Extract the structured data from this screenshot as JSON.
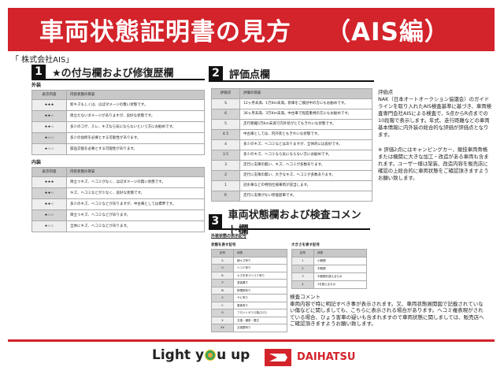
{
  "title": {
    "main": "車両状態証明書の見方",
    "sub": "（AIS編）"
  },
  "company": "「 株式会社AIS」",
  "section1": {
    "num": "1",
    "title": "★の付与欄および修復歴欄",
    "exterior": {
      "label": "外装",
      "headers": [
        "表示内容",
        "内装状態の目安"
      ],
      "rows": [
        [
          "★★★",
          "新キズもしくは、ほぼダメージの無い状態です。"
        ],
        [
          "★★☆",
          "目立たないダメージがありますが、良好な状態です。"
        ],
        [
          "★★☆",
          "多少のコゲ、スレ、キズなら気にならないという方にお勧めです。"
        ],
        [
          "★☆☆",
          "多少の加修を必要とする可能性があります。"
        ],
        [
          "★☆☆",
          "部品交換を必要とする可能性があります。"
        ]
      ]
    },
    "interior": {
      "label": "内装",
      "headers": [
        "表示内容",
        "内装状態の目安"
      ],
      "rows": [
        [
          "★★★",
          "目立つキズ、ヘコミがなく、ほぼダメージの無い状態です。"
        ],
        [
          "★★☆",
          "キズ、ヘコミなどが少なく、良好な状態です。"
        ],
        [
          "★★☆",
          "多少のキズ、ヘコミなどがありますが、中古車としては標準です。"
        ],
        [
          "★☆☆",
          "目立つキズ、ヘコミなどがあります。"
        ],
        [
          "★☆☆",
          "全体にキズ、ヘコミなどがあります。"
        ]
      ]
    }
  },
  "section2": {
    "num": "2",
    "title": "評価点欄",
    "headers": [
      "評価点",
      "評価の目安"
    ],
    "rows": [
      [
        "S",
        "12ヶ月未満、1万Km未満。新車をご検討中の方にもお勧めです。"
      ],
      [
        "6",
        "36ヶ月未満、3万Km未満。中古車で程度重視の方にもお勧めです。"
      ],
      [
        "5",
        "走行距離5万Km未満で内外装がとてもきれいな状態です。"
      ],
      [
        "4.5",
        "中古車としては、内外装ともきれいな状態です。"
      ],
      [
        "4",
        "多少のキズ、ヘコミなどはありますが、全体的には良好です。"
      ],
      [
        "3.5",
        "多少のキズ、ヘコミなら気にならない方にお勧めです。"
      ],
      [
        "3",
        "走行に支障の無い、キズ、ヘコミが多数あります。"
      ],
      [
        "2",
        "走行に支障の無い、大きなキズ、ヘコミが多数あります。"
      ],
      [
        "1",
        "冠水車などの特別仕様車両が該当します。"
      ],
      [
        "R",
        "走行に支障がない修復歴車です。"
      ]
    ],
    "note_title": "評価点",
    "note": "NAK（日本オートオークション協議会）のガイドラインを取り入れたAIS検査基準に基づき、車両検査専門会社AISによる検査で、S点からR点までの10段階で表示します。年式、走行距離などの車両基本情報に内外装の総合的な評価が評価点となります。",
    "note2": "※ 評価2点にはキャンピングカー、競技車両骨格または機関に大きな加工・改造がある車両も含まれます。ユーザー様は架装、改造内容を販売店に確認の上総合的に車両状態をご確認頂きますようお願い致します。"
  },
  "section3": {
    "num": "3",
    "title": "車両状態欄および検査コメント欄",
    "subtitle": "外装状態の表示記号",
    "condition": {
      "label": "状態を表す記号",
      "headers": [
        "記号",
        "状態"
      ],
      "rows": [
        [
          "A",
          "線キズ有り"
        ],
        [
          "U",
          "ヘコミ有り"
        ],
        [
          "B",
          "キズを伴うヘコミ有り"
        ],
        [
          "P",
          "塗装要す"
        ],
        [
          "W",
          "修理跡有り"
        ],
        [
          "S",
          "サビ有り"
        ],
        [
          "C",
          "腐食有り"
        ],
        [
          "G",
          "フロントガラス傷(ひび)"
        ],
        [
          "X",
          "交換・補修・要交"
        ],
        [
          "XX",
          "交換歴有り"
        ]
      ]
    },
    "size": {
      "label": "大きさを表す記号",
      "headers": [
        "記号",
        "状態"
      ],
      "rows": [
        [
          "1",
          "小範囲"
        ],
        [
          "2",
          "中範囲"
        ],
        [
          "3",
          "中範囲を超えるもの"
        ],
        [
          "4",
          "3を超えるもの"
        ]
      ]
    },
    "comment_title": "検査コメント",
    "comment": "車両内容で特に明記すべき事が表示されます。又、車両状態展開図で記載されていない傷などに関しましても、こちらに表示される場合があります。ヘコミ複表現がされている場合、ひょう害車の疑いも含まれますので車両状態に関しましては、販売店へご確認頂きますようお願い致します。"
  },
  "footer": {
    "slogan_pre": "Light y",
    "slogan_post": "u up",
    "brand": "DAIHATSU"
  },
  "colors": {
    "brand_red": "#d3232b"
  }
}
